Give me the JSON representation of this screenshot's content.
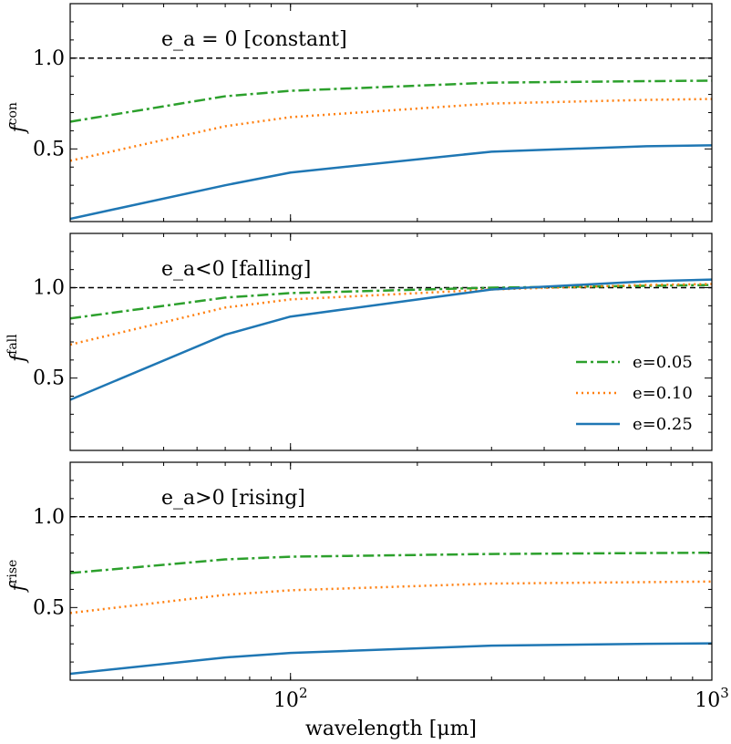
{
  "chart_data": {
    "type": "line",
    "xscale": "log",
    "xlim": [
      30,
      1000
    ],
    "ylim": [
      0.1,
      1.3
    ],
    "xlabel": "wavelength [μm]",
    "x": [
      30,
      70,
      100,
      300,
      700,
      1000
    ],
    "x_tick_labels": [
      {
        "value": 100,
        "base": "10",
        "exp": "2"
      },
      {
        "value": 1000,
        "base": "10",
        "exp": "3"
      }
    ],
    "y_ticks": [
      0.5,
      1.0
    ],
    "y_tick_labels": [
      "0.5",
      "1.0"
    ],
    "reference_line": 1.0,
    "colors": {
      "e005": "#2ca02c",
      "e010": "#ff7f0e",
      "e025": "#1f77b4",
      "ref": "#000000"
    },
    "legend": [
      {
        "key": "e005",
        "label": "e=0.05",
        "style": "dashdot"
      },
      {
        "key": "e010",
        "label": "e=0.10",
        "style": "dotted"
      },
      {
        "key": "e025",
        "label": "e=0.25",
        "style": "solid"
      }
    ],
    "panels": [
      {
        "id": "con",
        "title": "e_a = 0 [constant]",
        "ylabel": "f^con",
        "ylabel_base": "f",
        "ylabel_sup": "con",
        "series": [
          {
            "key": "e005",
            "name": "e=0.05",
            "values": [
              0.65,
              0.79,
              0.82,
              0.865,
              0.873,
              0.876
            ]
          },
          {
            "key": "e010",
            "name": "e=0.10",
            "values": [
              0.435,
              0.625,
              0.675,
              0.75,
              0.77,
              0.775
            ]
          },
          {
            "key": "e025",
            "name": "e=0.25",
            "values": [
              0.115,
              0.3,
              0.37,
              0.485,
              0.515,
              0.52
            ]
          }
        ]
      },
      {
        "id": "fall",
        "title": "e_a<0 [falling]",
        "ylabel": "f^fall",
        "ylabel_base": "f",
        "ylabel_sup": "fall",
        "series": [
          {
            "key": "e005",
            "name": "e=0.05",
            "values": [
              0.83,
              0.945,
              0.97,
              1.0,
              1.01,
              1.015
            ]
          },
          {
            "key": "e010",
            "name": "e=0.10",
            "values": [
              0.685,
              0.89,
              0.935,
              0.99,
              1.015,
              1.02
            ]
          },
          {
            "key": "e025",
            "name": "e=0.25",
            "values": [
              0.38,
              0.74,
              0.84,
              0.99,
              1.035,
              1.045
            ]
          }
        ]
      },
      {
        "id": "rise",
        "title": "e_a>0 [rising]",
        "ylabel": "f^rise",
        "ylabel_base": "f",
        "ylabel_sup": "rise",
        "series": [
          {
            "key": "e005",
            "name": "e=0.05",
            "values": [
              0.69,
              0.765,
              0.78,
              0.795,
              0.8,
              0.802
            ]
          },
          {
            "key": "e010",
            "name": "e=0.10",
            "values": [
              0.47,
              0.57,
              0.595,
              0.632,
              0.64,
              0.643
            ]
          },
          {
            "key": "e025",
            "name": "e=0.25",
            "values": [
              0.135,
              0.225,
              0.25,
              0.29,
              0.3,
              0.303
            ]
          }
        ]
      }
    ]
  }
}
